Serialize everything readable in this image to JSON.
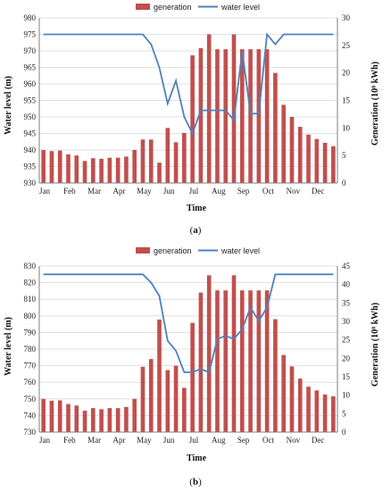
{
  "colors": {
    "bar": "#c0504d",
    "line": "#4f81bd",
    "grid": "#d9d9d9",
    "axis": "#7f7f7f"
  },
  "chart_data": [
    {
      "type": "bar+line",
      "panel_label": "(a)",
      "panel_letter": "a",
      "legend": {
        "bar": "generation",
        "line": "water level",
        "placement": "top-center"
      },
      "xlabel": "Time",
      "ylabel_left": "Water level (m)",
      "ylabel_right": "Generation (10⁸ kWh)",
      "month_labels": [
        "Jan",
        "Feb",
        "Mar",
        "Apr",
        "May",
        "Jun",
        "Jul",
        "Aug",
        "Sep",
        "Oct",
        "Nov",
        "Dec"
      ],
      "periods": 36,
      "ylim_left": [
        930,
        980
      ],
      "yticks_left": [
        930,
        935,
        940,
        945,
        950,
        955,
        960,
        965,
        970,
        975,
        980
      ],
      "ylim_right": [
        0,
        30
      ],
      "yticks_right": [
        0,
        5,
        10,
        15,
        20,
        25,
        30
      ],
      "grid": true,
      "generation": [
        6.0,
        5.8,
        5.9,
        5.2,
        5.0,
        4.0,
        4.5,
        4.4,
        4.6,
        4.6,
        4.8,
        6.0,
        7.9,
        7.9,
        3.7,
        10.0,
        7.4,
        9.1,
        23.2,
        24.5,
        27.0,
        24.3,
        24.3,
        27.0,
        24.3,
        24.3,
        24.3,
        24.3,
        20.0,
        14.2,
        12.0,
        10.2,
        8.8,
        8.0,
        7.3,
        6.7
      ],
      "water_level": [
        975,
        975,
        975,
        975,
        975,
        975,
        975,
        975,
        975,
        975,
        975,
        975,
        975,
        972,
        965,
        954,
        961,
        950,
        945,
        952,
        952,
        952,
        952,
        949,
        970,
        951,
        951,
        975,
        972,
        975,
        975,
        975,
        975,
        975,
        975,
        975
      ]
    },
    {
      "type": "bar+line",
      "panel_label": "(b)",
      "panel_letter": "b",
      "legend": {
        "bar": "generation",
        "line": "water level",
        "placement": "top-center"
      },
      "xlabel": "Time",
      "ylabel_left": "Water level (m)",
      "ylabel_right": "Generation (10⁸ kWh)",
      "month_labels": [
        "Jan",
        "Feb",
        "Mar",
        "Apr",
        "May",
        "Jun",
        "Jul",
        "Aug",
        "Sep",
        "Oct",
        "Nov",
        "Dec"
      ],
      "periods": 36,
      "ylim_left": [
        730,
        830
      ],
      "yticks_left": [
        730,
        740,
        750,
        760,
        770,
        780,
        790,
        800,
        810,
        820,
        830
      ],
      "ylim_right": [
        0,
        45
      ],
      "yticks_right": [
        0,
        5,
        10,
        15,
        20,
        25,
        30,
        35,
        40,
        45
      ],
      "grid": true,
      "generation": [
        9.0,
        8.5,
        8.6,
        7.6,
        7.2,
        5.8,
        6.5,
        6.2,
        6.5,
        6.5,
        6.8,
        9.0,
        17.7,
        19.8,
        30.5,
        16.8,
        18.0,
        12.0,
        29.6,
        37.8,
        42.5,
        38.4,
        38.4,
        42.5,
        38.4,
        38.4,
        38.4,
        38.4,
        30.6,
        20.9,
        17.8,
        14.5,
        12.3,
        11.3,
        10.2,
        9.7
      ],
      "water_level": [
        825,
        825,
        825,
        825,
        825,
        825,
        825,
        825,
        825,
        825,
        825,
        825,
        825,
        820,
        812,
        785,
        779,
        766,
        766,
        768,
        766,
        786,
        788,
        786,
        792,
        805,
        797,
        805,
        825,
        825,
        825,
        825,
        825,
        825,
        825,
        825
      ]
    }
  ]
}
